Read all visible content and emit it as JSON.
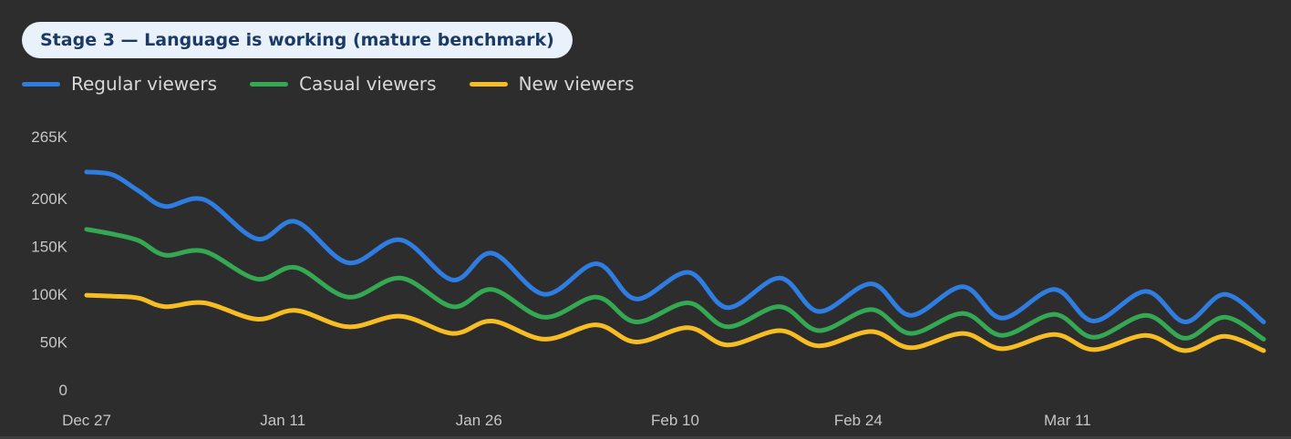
{
  "header": {
    "badge_label": "Stage 3 — Language is working (mature benchmark)"
  },
  "chart_data": {
    "type": "line",
    "title": "",
    "xlabel": "",
    "ylabel": "",
    "x_start": "2023-12-27",
    "x_end": "2024-03-26",
    "x_ticks": [
      {
        "date": "2023-12-27",
        "label": "Dec 27"
      },
      {
        "date": "2024-01-11",
        "label": "Jan 11"
      },
      {
        "date": "2024-01-26",
        "label": "Jan 26"
      },
      {
        "date": "2024-02-10",
        "label": "Feb 10"
      },
      {
        "date": "2024-02-24",
        "label": "Feb 24"
      },
      {
        "date": "2024-03-11",
        "label": "Mar 11"
      }
    ],
    "y_ticks": [
      {
        "value": 0,
        "label": "0"
      },
      {
        "value": 50000,
        "label": "50K"
      },
      {
        "value": 100000,
        "label": "100K"
      },
      {
        "value": 150000,
        "label": "150K"
      },
      {
        "value": 200000,
        "label": "200K"
      },
      {
        "value": 265000,
        "label": "265K"
      }
    ],
    "ylim": [
      0,
      265000
    ],
    "grid": false,
    "legend_position": "top-left",
    "series": [
      {
        "name": "Regular viewers",
        "color": "#2f7de1",
        "points": [
          [
            "2023-12-27",
            228000
          ],
          [
            "2023-12-29",
            225000
          ],
          [
            "2023-12-31",
            208000
          ],
          [
            "2024-01-02",
            192000
          ],
          [
            "2024-01-05",
            199000
          ],
          [
            "2024-01-09",
            158000
          ],
          [
            "2024-01-12",
            176000
          ],
          [
            "2024-01-16",
            133000
          ],
          [
            "2024-01-20",
            157000
          ],
          [
            "2024-01-24",
            115000
          ],
          [
            "2024-01-27",
            143000
          ],
          [
            "2024-01-31",
            100000
          ],
          [
            "2024-02-04",
            132000
          ],
          [
            "2024-02-07",
            95000
          ],
          [
            "2024-02-11",
            123000
          ],
          [
            "2024-02-14",
            86000
          ],
          [
            "2024-02-18",
            117000
          ],
          [
            "2024-02-21",
            82000
          ],
          [
            "2024-02-25",
            111000
          ],
          [
            "2024-02-28",
            78000
          ],
          [
            "2024-03-03",
            108000
          ],
          [
            "2024-03-06",
            75000
          ],
          [
            "2024-03-10",
            105000
          ],
          [
            "2024-03-13",
            72000
          ],
          [
            "2024-03-17",
            103000
          ],
          [
            "2024-03-20",
            71000
          ],
          [
            "2024-03-23",
            100000
          ],
          [
            "2024-03-26",
            71000
          ]
        ]
      },
      {
        "name": "Casual viewers",
        "color": "#34a853",
        "points": [
          [
            "2023-12-27",
            168000
          ],
          [
            "2023-12-29",
            163000
          ],
          [
            "2023-12-31",
            156000
          ],
          [
            "2024-01-02",
            141000
          ],
          [
            "2024-01-05",
            145000
          ],
          [
            "2024-01-09",
            116000
          ],
          [
            "2024-01-12",
            128000
          ],
          [
            "2024-01-16",
            97000
          ],
          [
            "2024-01-20",
            117000
          ],
          [
            "2024-01-24",
            87000
          ],
          [
            "2024-01-27",
            105000
          ],
          [
            "2024-01-31",
            76000
          ],
          [
            "2024-02-04",
            97000
          ],
          [
            "2024-02-07",
            71000
          ],
          [
            "2024-02-11",
            91000
          ],
          [
            "2024-02-14",
            66000
          ],
          [
            "2024-02-18",
            87000
          ],
          [
            "2024-02-21",
            62000
          ],
          [
            "2024-02-25",
            84000
          ],
          [
            "2024-02-28",
            59000
          ],
          [
            "2024-03-03",
            80000
          ],
          [
            "2024-03-06",
            57000
          ],
          [
            "2024-03-10",
            79000
          ],
          [
            "2024-03-13",
            55000
          ],
          [
            "2024-03-17",
            78000
          ],
          [
            "2024-03-20",
            54000
          ],
          [
            "2024-03-23",
            76000
          ],
          [
            "2024-03-26",
            53000
          ]
        ]
      },
      {
        "name": "New viewers",
        "color": "#f6bd24",
        "points": [
          [
            "2023-12-27",
            99000
          ],
          [
            "2023-12-29",
            98000
          ],
          [
            "2023-12-31",
            96000
          ],
          [
            "2024-01-02",
            87000
          ],
          [
            "2024-01-05",
            91000
          ],
          [
            "2024-01-09",
            74000
          ],
          [
            "2024-01-12",
            83000
          ],
          [
            "2024-01-16",
            66000
          ],
          [
            "2024-01-20",
            77000
          ],
          [
            "2024-01-24",
            59000
          ],
          [
            "2024-01-27",
            72000
          ],
          [
            "2024-01-31",
            53000
          ],
          [
            "2024-02-04",
            68000
          ],
          [
            "2024-02-07",
            50000
          ],
          [
            "2024-02-11",
            65000
          ],
          [
            "2024-02-14",
            47000
          ],
          [
            "2024-02-18",
            62000
          ],
          [
            "2024-02-21",
            46000
          ],
          [
            "2024-02-25",
            61000
          ],
          [
            "2024-02-28",
            44000
          ],
          [
            "2024-03-03",
            59000
          ],
          [
            "2024-03-06",
            43000
          ],
          [
            "2024-03-10",
            58000
          ],
          [
            "2024-03-13",
            42000
          ],
          [
            "2024-03-17",
            57000
          ],
          [
            "2024-03-20",
            41000
          ],
          [
            "2024-03-23",
            56000
          ],
          [
            "2024-03-26",
            41000
          ]
        ]
      }
    ]
  }
}
